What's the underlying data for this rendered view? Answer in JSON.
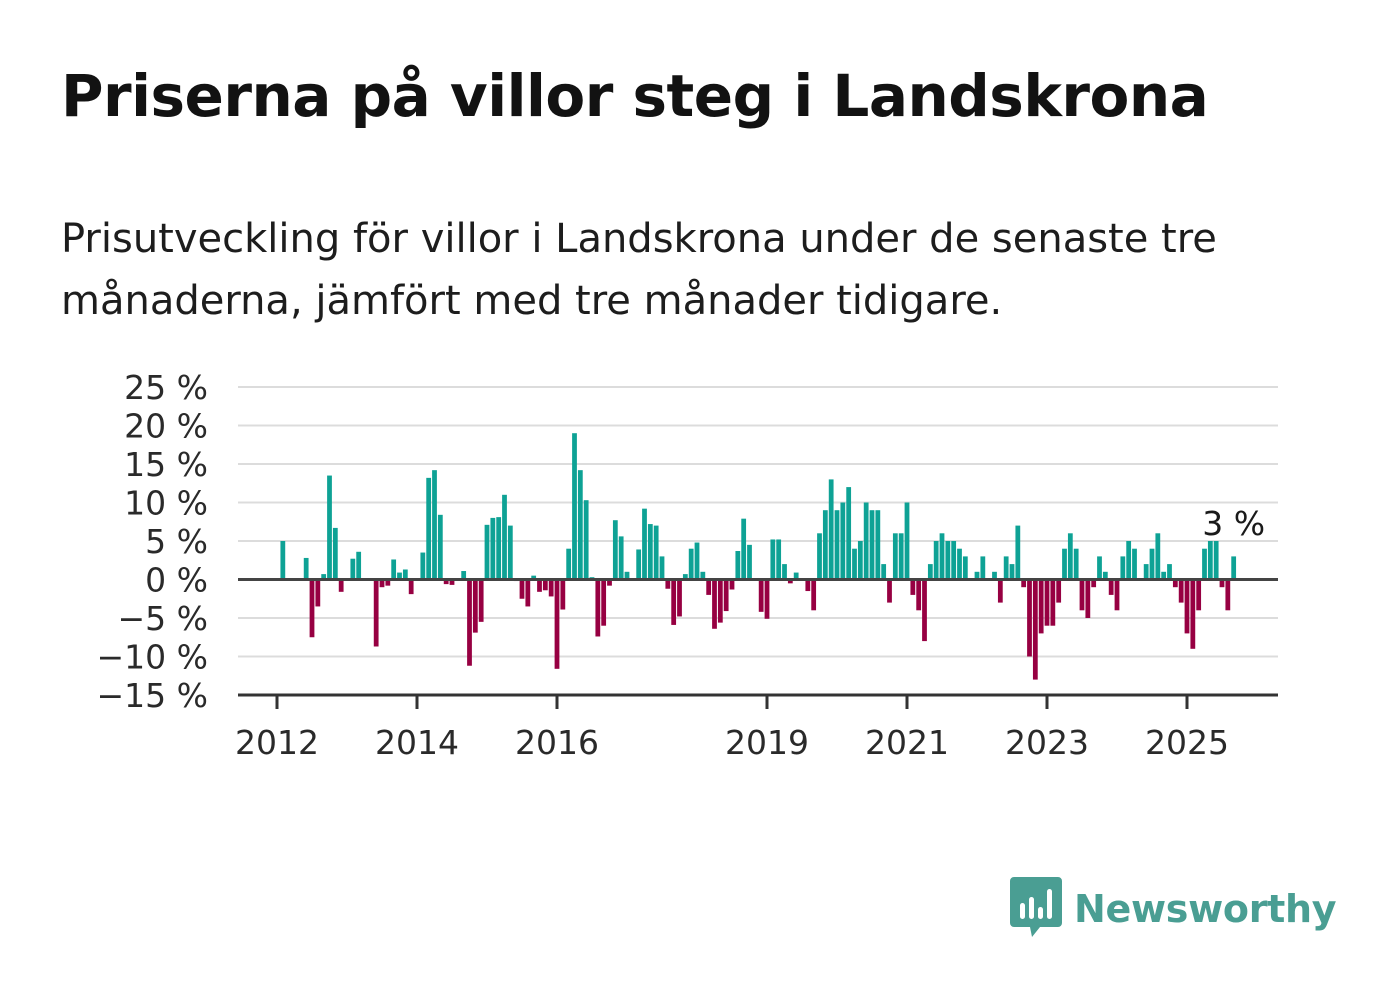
{
  "title": "Priserna på villor steg i Landskrona",
  "subtitle": "Prisutveckling för villor i Landskrona under de senaste tre månaderna, jämfört med tre månader tidigare.",
  "brand": {
    "name": "Newsworthy",
    "color": "#4a9e93",
    "icon": "newsworthy-logo-icon"
  },
  "colors": {
    "positive": "#0ea295",
    "negative": "#970042",
    "grid": "#dcdcdc",
    "zero_line": "#444444"
  },
  "chart_data": {
    "type": "bar",
    "ylim": [
      -15,
      25
    ],
    "yticks": [
      25,
      20,
      15,
      10,
      5,
      0,
      -5,
      -10,
      -15
    ],
    "ytick_labels": [
      "25 %",
      "20 %",
      "15 %",
      "10 %",
      "5 %",
      "0 %",
      "−5 %",
      "−10 %",
      "−15 %"
    ],
    "xticks": [
      {
        "label": "2012",
        "x": 2012.0
      },
      {
        "label": "2014",
        "x": 2014.0
      },
      {
        "label": "2016",
        "x": 2016.0
      },
      {
        "label": "2019",
        "x": 2019.0
      },
      {
        "label": "2021",
        "x": 2021.0
      },
      {
        "label": "2023",
        "x": 2023.0
      },
      {
        "label": "2025",
        "x": 2025.0
      }
    ],
    "start": {
      "year": 2012,
      "month": 2
    },
    "values": [
      5,
      null,
      null,
      null,
      2.8,
      -7.5,
      -3.5,
      0.7,
      13.5,
      6.7,
      -1.6,
      null,
      2.7,
      3.6,
      null,
      null,
      -8.7,
      -1,
      -0.8,
      2.6,
      0.9,
      1.3,
      -1.9,
      null,
      3.5,
      13.2,
      14.2,
      8.4,
      -0.6,
      -0.7,
      null,
      1.1,
      -11.2,
      -6.9,
      -5.5,
      7.1,
      8,
      8.1,
      11,
      7,
      -0.2,
      -2.5,
      -3.5,
      0.5,
      -1.6,
      -1.4,
      -2.2,
      -11.6,
      -3.9,
      4,
      19,
      14.2,
      10.3,
      0.3,
      -7.4,
      -6,
      -0.8,
      7.7,
      5.6,
      1,
      null,
      3.9,
      9.2,
      7.2,
      7,
      3,
      -1.2,
      -5.9,
      -4.8,
      0.7,
      4,
      4.8,
      1,
      -2,
      -6.4,
      -5.6,
      -4.1,
      -1.3,
      3.7,
      7.9,
      4.5,
      null,
      -4.2,
      -5.1,
      5.2,
      5.2,
      2,
      -0.5,
      0.9,
      null,
      -1.5,
      -4,
      6,
      9,
      13,
      9,
      10,
      12,
      4,
      5,
      10,
      9,
      9,
      2,
      -3,
      6,
      6,
      10,
      -2,
      -4,
      -8,
      2,
      5,
      6,
      5,
      5,
      4,
      3,
      null,
      1,
      3,
      null,
      1,
      -3,
      3,
      2,
      7,
      -1,
      -10,
      -13,
      -7,
      -6,
      -6,
      -3,
      4,
      6,
      4,
      -4,
      -5,
      -1,
      3,
      1,
      -2,
      -4,
      3,
      5,
      4,
      null,
      2,
      4,
      6,
      1,
      2,
      -1,
      -3,
      -7,
      -9,
      -4,
      4,
      5,
      5,
      -1,
      -4,
      3
    ],
    "last_value_label": "3 %"
  }
}
